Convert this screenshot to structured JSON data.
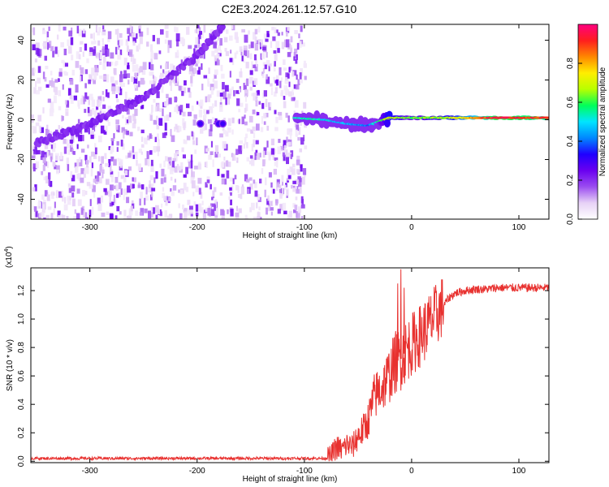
{
  "title": "C2E3.2024.261.12.57.G10",
  "colors": {
    "snr_line": "#e8312f",
    "axis": "#000000",
    "colorbar": [
      "#ffffff",
      "#e7d2f6",
      "#9a4cf0",
      "#6a00f0",
      "#1f00ff",
      "#0088ff",
      "#00e5ff",
      "#00ff5a",
      "#b8ff00",
      "#ffee00",
      "#ff8800",
      "#ff1e1e",
      "#ff0080"
    ]
  },
  "chart_data": [
    {
      "type": "heatmap",
      "xlabel": "Height of straight line (km)",
      "ylabel": "Frequency (Hz)",
      "xlim": [
        -355,
        128
      ],
      "ylim": [
        -50,
        48
      ],
      "xticks": [
        -300,
        -200,
        -100,
        0,
        100
      ],
      "xtick_labels": [
        "-300",
        "-200",
        "-100",
        "0",
        "100"
      ],
      "yticks": [
        -40,
        -20,
        0,
        20,
        40
      ],
      "ytick_labels": [
        "-40",
        "-20",
        "0",
        "20",
        "40"
      ],
      "colorbar": {
        "label": "Normalized spectral amplitude",
        "range": [
          0,
          1
        ],
        "ticks": [
          0.0,
          0.2,
          0.4,
          0.6,
          0.8
        ],
        "tick_labels": [
          "0.0",
          "0.2",
          "0.4",
          "0.6",
          "0.8"
        ]
      },
      "noise_region_x": [
        -355,
        -100
      ],
      "features": [
        {
          "kind": "diagonal_track",
          "x": [
            -350,
            -300,
            -250,
            -200,
            -175
          ],
          "y": [
            -12,
            -2,
            11,
            32,
            48
          ],
          "amplitude": 0.2
        },
        {
          "kind": "spot",
          "x": -197,
          "y": -2,
          "amplitude": 0.3
        },
        {
          "kind": "spot",
          "x": -180,
          "y": -2,
          "amplitude": 0.3
        },
        {
          "kind": "spot",
          "x": -176,
          "y": -2,
          "amplitude": 0.3
        },
        {
          "kind": "line_signal",
          "x": [
            -108,
            -80,
            -60,
            -40,
            -20,
            0,
            40,
            80,
            128
          ],
          "y": [
            1,
            0,
            -2,
            -3,
            1,
            1,
            1,
            1,
            1
          ],
          "amplitude": [
            0.55,
            0.5,
            0.45,
            0.4,
            0.7,
            0.6,
            0.7,
            0.95,
            0.9
          ]
        }
      ]
    },
    {
      "type": "line",
      "xlabel": "Height of straight line (km)",
      "ylabel": "SNR (10 * v/v)",
      "yscale_label": "(x10",
      "yscale_exponent": "4",
      "yscale_close": ")",
      "xlim": [
        -355,
        128
      ],
      "ylim": [
        -0.01,
        1.36
      ],
      "xticks": [
        -300,
        -200,
        -100,
        0,
        100
      ],
      "xtick_labels": [
        "-300",
        "-200",
        "-100",
        "0",
        "100"
      ],
      "yticks": [
        0.0,
        0.2,
        0.4,
        0.6,
        0.8,
        1.0,
        1.2
      ],
      "ytick_labels": [
        "0.0",
        "0.2",
        "0.4",
        "0.6",
        "0.8",
        "1.0",
        "1.2"
      ],
      "series": [
        {
          "x": [
            -355,
            -300,
            -250,
            -200,
            -150,
            -100,
            -80,
            -75,
            -70,
            -65,
            -60,
            -55,
            -50,
            -45,
            -40,
            -35,
            -30,
            -25,
            -20,
            -15,
            -10,
            -5,
            0,
            5,
            10,
            15,
            20,
            25,
            30,
            35,
            40,
            50,
            60,
            70,
            80,
            90,
            100,
            110,
            120,
            128
          ],
          "y": [
            0.02,
            0.02,
            0.02,
            0.02,
            0.02,
            0.02,
            0.02,
            0.04,
            0.1,
            0.08,
            0.12,
            0.1,
            0.18,
            0.22,
            0.3,
            0.45,
            0.5,
            0.55,
            0.62,
            0.7,
            0.72,
            0.78,
            0.82,
            0.86,
            0.9,
            0.95,
            1.0,
            1.05,
            1.1,
            1.15,
            1.18,
            1.2,
            1.21,
            1.21,
            1.22,
            1.22,
            1.22,
            1.22,
            1.22,
            1.22
          ]
        }
      ],
      "spikes": [
        {
          "x": -10,
          "y": 1.35
        },
        {
          "x": -13,
          "y": 1.25
        },
        {
          "x": -7,
          "y": 1.22
        }
      ]
    }
  ]
}
